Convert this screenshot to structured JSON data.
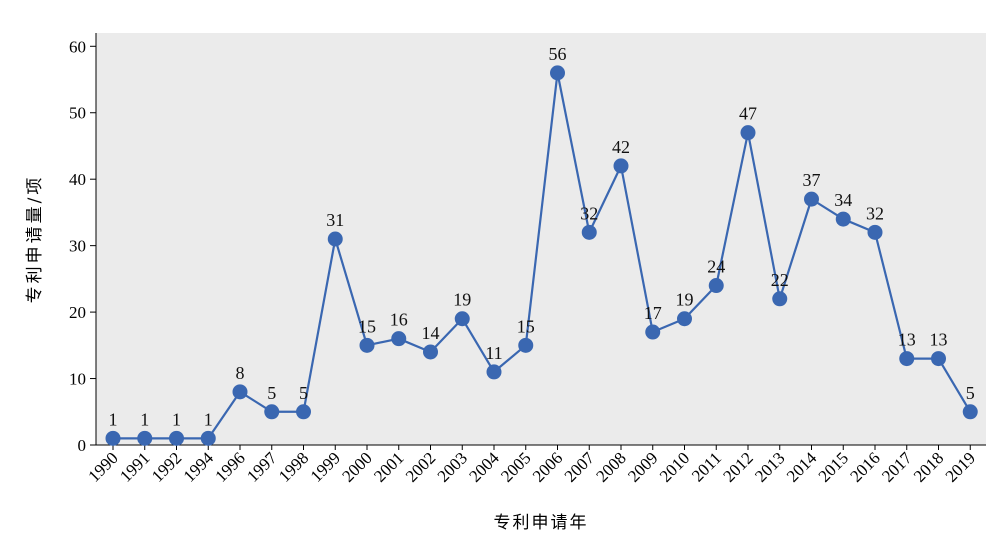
{
  "chart_data": {
    "type": "line",
    "title": "",
    "xlabel": "专利申请年",
    "ylabel": "专利申请量/项",
    "categories": [
      "1990",
      "1991",
      "1992",
      "1994",
      "1996",
      "1997",
      "1998",
      "1999",
      "2000",
      "2001",
      "2002",
      "2003",
      "2004",
      "2005",
      "2006",
      "2007",
      "2008",
      "2009",
      "2010",
      "2011",
      "2012",
      "2013",
      "2014",
      "2015",
      "2016",
      "2017",
      "2018",
      "2019"
    ],
    "series": [
      {
        "values": [
          1,
          1,
          1,
          1,
          8,
          5,
          5,
          31,
          15,
          16,
          14,
          19,
          11,
          15,
          56,
          32,
          42,
          17,
          19,
          24,
          47,
          22,
          37,
          34,
          32,
          13,
          13,
          5
        ]
      }
    ],
    "ylim": [
      0,
      62
    ],
    "yticks": [
      0,
      10,
      20,
      30,
      40,
      50,
      60
    ],
    "grid": false,
    "legend": "none",
    "colors": {
      "line": "#3a67b1",
      "marker": "#3a67b1",
      "plot_bg": "#ebebeb",
      "axis": "#000000"
    }
  }
}
